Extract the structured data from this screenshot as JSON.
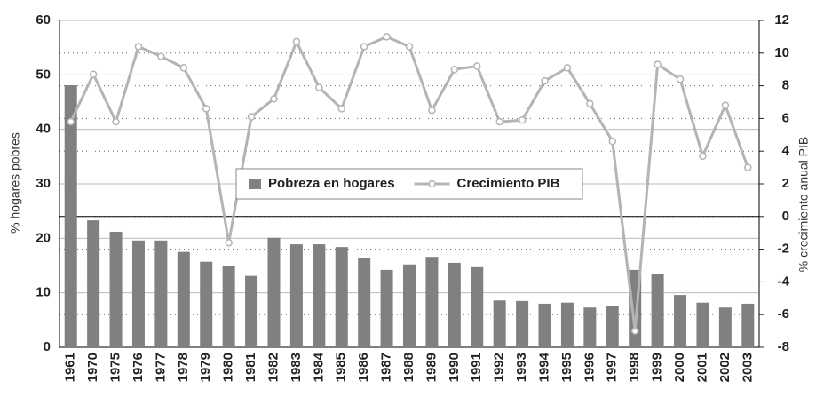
{
  "chart_data": {
    "type": "bar_line",
    "categories": [
      "1961",
      "1970",
      "1975",
      "1976",
      "1977",
      "1978",
      "1979",
      "1980",
      "1981",
      "1982",
      "1983",
      "1984",
      "1985",
      "1986",
      "1987",
      "1988",
      "1989",
      "1990",
      "1991",
      "1992",
      "1993",
      "1994",
      "1995",
      "1996",
      "1997",
      "1998",
      "1999",
      "2000",
      "2001",
      "2002",
      "2003"
    ],
    "series": [
      {
        "name": "Pobreza en hogares",
        "type": "bar",
        "color": "#808080",
        "values": [
          48.1,
          23.3,
          21.2,
          19.6,
          19.6,
          17.5,
          15.7,
          15.0,
          13.1,
          20.1,
          18.9,
          18.9,
          18.4,
          16.3,
          14.2,
          15.2,
          16.6,
          15.5,
          14.7,
          8.6,
          8.5,
          8.0,
          8.2,
          7.3,
          7.5,
          14.2,
          13.5,
          9.6,
          8.2,
          7.3,
          8.0
        ]
      },
      {
        "name": "Crecimiento PIB",
        "type": "line",
        "axis": "y2",
        "color": "#b4b4b4",
        "values": [
          5.8,
          8.7,
          5.8,
          10.4,
          9.8,
          9.1,
          6.6,
          -1.6,
          6.1,
          7.2,
          10.7,
          7.9,
          6.6,
          10.4,
          11.0,
          10.4,
          6.5,
          9.0,
          9.2,
          5.8,
          5.9,
          8.3,
          9.1,
          6.9,
          4.6,
          -7.0,
          9.3,
          8.4,
          3.7,
          6.8,
          3.0
        ]
      }
    ],
    "y_label": "% hogares pobres",
    "y2_label": "% crecimiento anual PIB",
    "ylim": [
      0,
      60
    ],
    "yticks": [
      0,
      10,
      20,
      30,
      40,
      50,
      60
    ],
    "y2lim": [
      -8,
      12
    ],
    "y2ticks": [
      -8,
      -6,
      -4,
      -2,
      0,
      2,
      4,
      6,
      8,
      10,
      12
    ],
    "legend": "center",
    "grid": true
  }
}
